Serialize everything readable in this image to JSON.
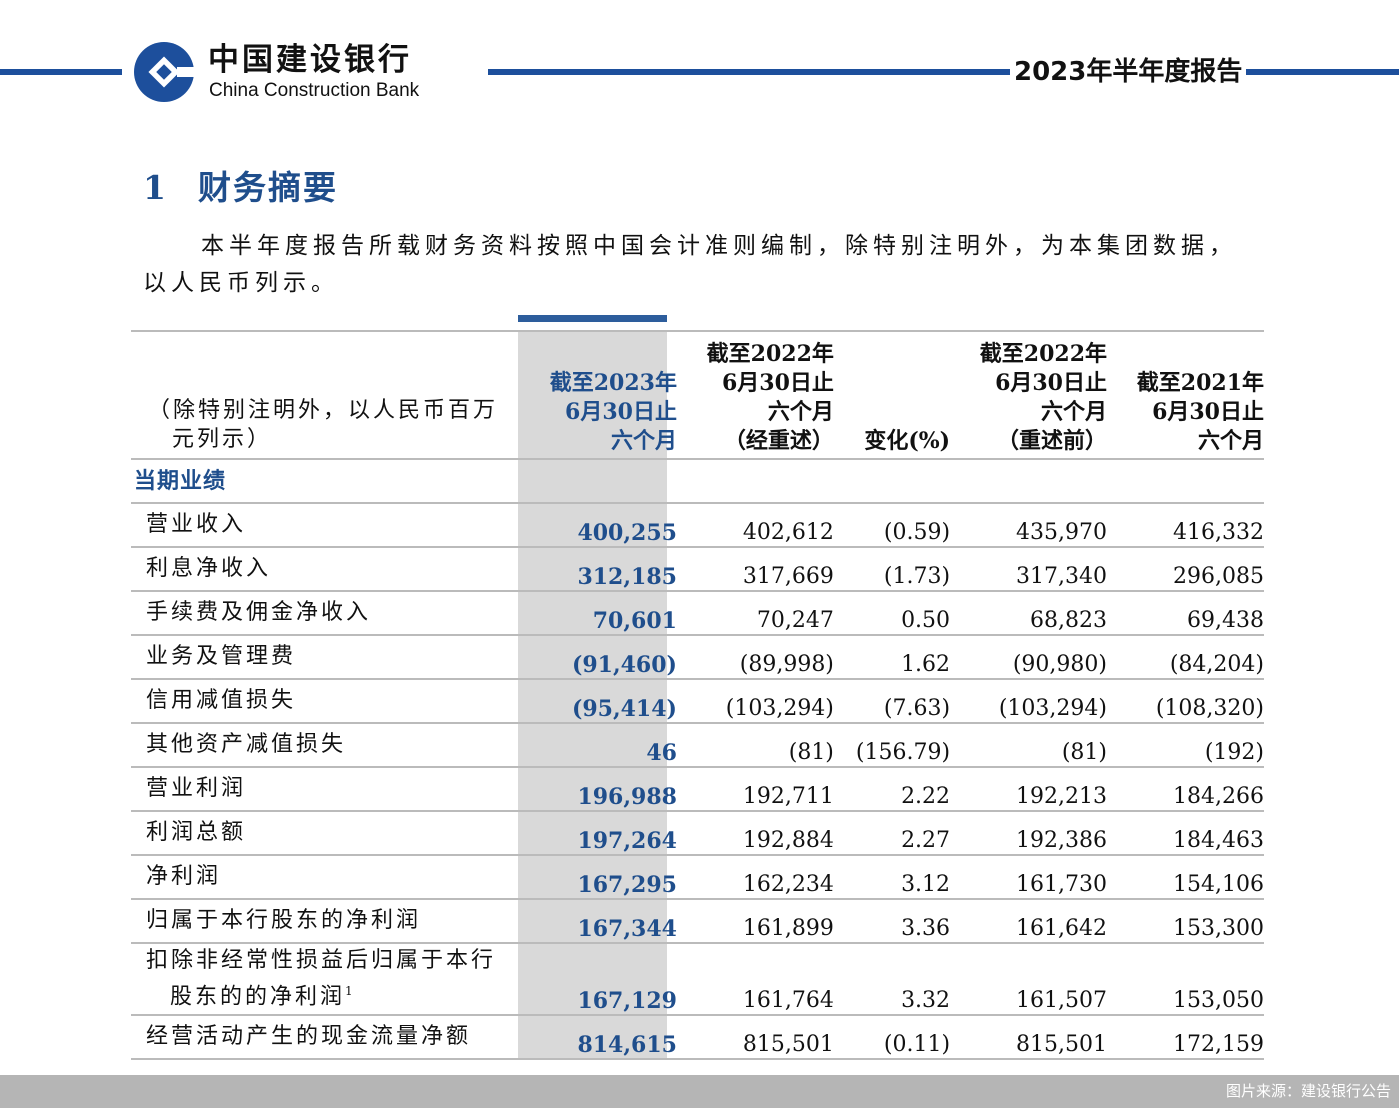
{
  "header": {
    "bank_cn": "中国建设银行",
    "bank_en": "China Construction Bank",
    "report_title": "2023年半年度报告",
    "brand_color": "#1d4f9c"
  },
  "section": {
    "number": "1",
    "title": "财务摘要"
  },
  "intro": "本半年度报告所载财务资料按照中国会计准则编制，除特别注明外，为本集团数据，以人民币列示。",
  "table": {
    "headers": {
      "unit": [
        "（除特别注明外，以人民币百万",
        "元列示）"
      ],
      "c1": [
        "截至2023年",
        "6月30日止",
        "六个月"
      ],
      "c2": [
        "截至2022年",
        "6月30日止",
        "六个月",
        "（经重述）"
      ],
      "c3": [
        "变化(%)"
      ],
      "c4": [
        "截至2022年",
        "6月30日止",
        "六个月",
        "（重述前）"
      ],
      "c5": [
        "截至2021年",
        "6月30日止",
        "六个月"
      ]
    },
    "section_label": "当期业绩",
    "rows": [
      {
        "label": "营业收入",
        "v": [
          "400,255",
          "402,612",
          "(0.59)",
          "435,970",
          "416,332"
        ]
      },
      {
        "label": "利息净收入",
        "v": [
          "312,185",
          "317,669",
          "(1.73)",
          "317,340",
          "296,085"
        ]
      },
      {
        "label": "手续费及佣金净收入",
        "v": [
          "70,601",
          "70,247",
          "0.50",
          "68,823",
          "69,438"
        ]
      },
      {
        "label": "业务及管理费",
        "v": [
          "(91,460)",
          "(89,998)",
          "1.62",
          "(90,980)",
          "(84,204)"
        ]
      },
      {
        "label": "信用减值损失",
        "v": [
          "(95,414)",
          "(103,294)",
          "(7.63)",
          "(103,294)",
          "(108,320)"
        ]
      },
      {
        "label": "其他资产减值损失",
        "v": [
          "46",
          "(81)",
          "(156.79)",
          "(81)",
          "(192)"
        ]
      },
      {
        "label": "营业利润",
        "v": [
          "196,988",
          "192,711",
          "2.22",
          "192,213",
          "184,266"
        ]
      },
      {
        "label": "利润总额",
        "v": [
          "197,264",
          "192,884",
          "2.27",
          "192,386",
          "184,463"
        ]
      },
      {
        "label": "净利润",
        "v": [
          "167,295",
          "162,234",
          "3.12",
          "161,730",
          "154,106"
        ]
      },
      {
        "label": "归属于本行股东的净利润",
        "v": [
          "167,344",
          "161,899",
          "3.36",
          "161,642",
          "153,300"
        ]
      },
      {
        "label": "扣除非经常性损益后归属于本行",
        "label2": "股东的的净利润",
        "footnote": "1",
        "v": [
          "167,129",
          "161,764",
          "3.32",
          "161,507",
          "153,050"
        ]
      },
      {
        "label": "经营活动产生的现金流量净额",
        "v": [
          "814,615",
          "815,501",
          "(0.11)",
          "815,501",
          "172,159"
        ]
      }
    ]
  },
  "credit": "图片来源：建设银行公告"
}
